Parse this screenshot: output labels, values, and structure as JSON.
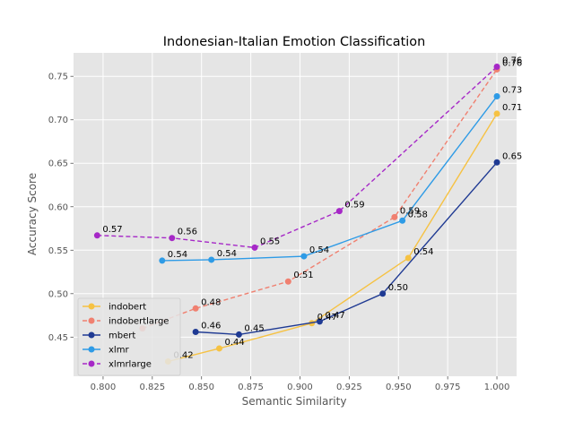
{
  "chart_data": {
    "type": "line",
    "title": "Indonesian-Italian Emotion Classification",
    "xlabel": "Semantic Similarity",
    "ylabel": "Accuracy Score",
    "xlim": [
      0.785,
      1.01
    ],
    "ylim": [
      0.405,
      0.777
    ],
    "xticks": [
      "0.800",
      "0.825",
      "0.850",
      "0.875",
      "0.900",
      "0.925",
      "0.950",
      "0.975",
      "1.000"
    ],
    "yticks": [
      "0.45",
      "0.50",
      "0.55",
      "0.60",
      "0.65",
      "0.70",
      "0.75"
    ],
    "grid": true,
    "legend_position": "lower-left",
    "series": [
      {
        "name": "indobert",
        "color": "#f6c243",
        "dashed": false,
        "points": [
          {
            "x": 0.833,
            "y": 0.422,
            "label": "0.42"
          },
          {
            "x": 0.859,
            "y": 0.437,
            "label": "0.44"
          },
          {
            "x": 0.906,
            "y": 0.466,
            "label": "0.47"
          },
          {
            "x": 0.955,
            "y": 0.541,
            "label": "0.54"
          },
          {
            "x": 1.0,
            "y": 0.707,
            "label": "0.71"
          }
        ]
      },
      {
        "name": "indobertlarge",
        "color": "#f08070",
        "dashed": true,
        "points": [
          {
            "x": 0.82,
            "y": 0.46,
            "label": ""
          },
          {
            "x": 0.847,
            "y": 0.483,
            "label": "0.48"
          },
          {
            "x": 0.894,
            "y": 0.514,
            "label": "0.51"
          },
          {
            "x": 0.948,
            "y": 0.588,
            "label": "0.59"
          },
          {
            "x": 1.0,
            "y": 0.758,
            "label": "0.76"
          }
        ]
      },
      {
        "name": "mbert",
        "color": "#1f3a93",
        "dashed": false,
        "points": [
          {
            "x": 0.847,
            "y": 0.456,
            "label": "0.46"
          },
          {
            "x": 0.869,
            "y": 0.453,
            "label": "0.45"
          },
          {
            "x": 0.91,
            "y": 0.468,
            "label": "0.47"
          },
          {
            "x": 0.942,
            "y": 0.5,
            "label": "0.50"
          },
          {
            "x": 1.0,
            "y": 0.651,
            "label": "0.65"
          }
        ]
      },
      {
        "name": "xlmr",
        "color": "#2e9be6",
        "dashed": false,
        "points": [
          {
            "x": 0.83,
            "y": 0.538,
            "label": "0.54"
          },
          {
            "x": 0.855,
            "y": 0.539,
            "label": "0.54"
          },
          {
            "x": 0.902,
            "y": 0.543,
            "label": "0.54"
          },
          {
            "x": 0.952,
            "y": 0.584,
            "label": "0.58"
          },
          {
            "x": 1.0,
            "y": 0.727,
            "label": "0.73"
          }
        ]
      },
      {
        "name": "xlmrlarge",
        "color": "#a628c7",
        "dashed": true,
        "points": [
          {
            "x": 0.797,
            "y": 0.567,
            "label": "0.57"
          },
          {
            "x": 0.835,
            "y": 0.564,
            "label": "0.56"
          },
          {
            "x": 0.877,
            "y": 0.553,
            "label": "0.55"
          },
          {
            "x": 0.92,
            "y": 0.595,
            "label": "0.59"
          },
          {
            "x": 1.0,
            "y": 0.761,
            "label": "0.76"
          }
        ]
      }
    ]
  }
}
